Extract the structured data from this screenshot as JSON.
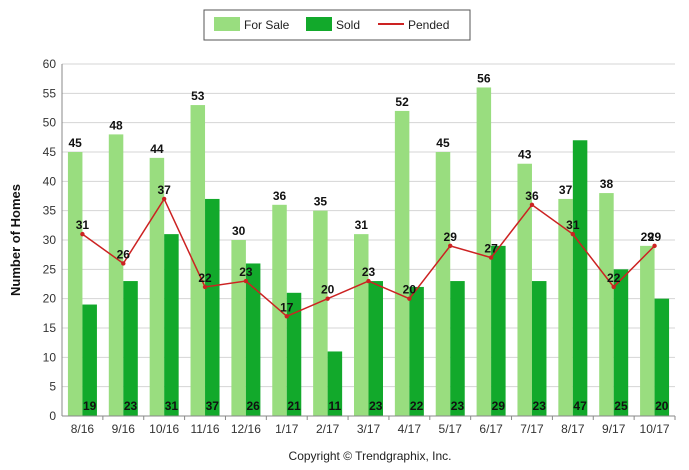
{
  "chart_data": {
    "type": "bar",
    "title": "",
    "xlabel": "",
    "ylabel": "Number of Homes",
    "ylim": [
      0,
      60
    ],
    "yticks": [
      0,
      5,
      10,
      15,
      20,
      25,
      30,
      35,
      40,
      45,
      50,
      55,
      60
    ],
    "grid": true,
    "legend_position": "top-center",
    "categories": [
      "8/16",
      "9/16",
      "10/16",
      "11/16",
      "12/16",
      "1/17",
      "2/17",
      "3/17",
      "4/17",
      "5/17",
      "6/17",
      "7/17",
      "8/17",
      "9/17",
      "10/17"
    ],
    "series": [
      {
        "name": "For Sale",
        "type": "bar",
        "color": "#99DD7F",
        "values": [
          45,
          48,
          44,
          53,
          30,
          36,
          35,
          31,
          52,
          45,
          56,
          43,
          37,
          38,
          29
        ]
      },
      {
        "name": "Sold",
        "type": "bar",
        "color": "#12A92B",
        "values": [
          19,
          23,
          31,
          37,
          26,
          21,
          11,
          23,
          22,
          23,
          29,
          23,
          47,
          25,
          20
        ]
      },
      {
        "name": "Pended",
        "type": "line",
        "color": "#CC2222",
        "values": [
          31,
          26,
          37,
          22,
          23,
          17,
          20,
          23,
          20,
          29,
          27,
          36,
          31,
          22,
          29
        ]
      }
    ]
  },
  "footer": {
    "copyright": "Copyright © Trendgraphix, Inc."
  }
}
